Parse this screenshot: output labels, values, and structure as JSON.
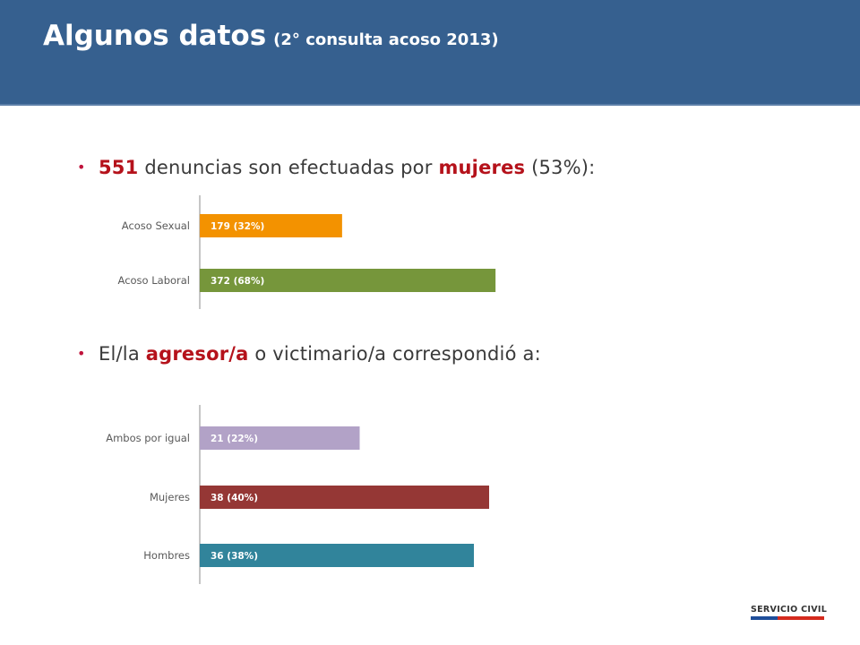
{
  "header": {
    "title": "Algunos datos",
    "subtitle": "(2° consulta acoso 2013)"
  },
  "bullet1": {
    "bullet": "•",
    "number": "551",
    "text_a": " denuncias son efectuadas por ",
    "highlight": "mujeres",
    "text_b": " (53%):"
  },
  "bullet2": {
    "bullet": "•",
    "text_a": "El/la ",
    "highlight": "agresor/a",
    "text_b": " o victimario/a correspondió a:"
  },
  "chart_data": [
    {
      "type": "bar",
      "orientation": "horizontal",
      "categories": [
        "Acoso Sexual",
        "Acoso Laboral"
      ],
      "values": [
        179,
        372
      ],
      "data_labels": [
        "179 (32%)",
        "372 (68%)"
      ],
      "colors": [
        "#F39200",
        "#76963B"
      ],
      "xlim": [
        0,
        400
      ]
    },
    {
      "type": "bar",
      "orientation": "horizontal",
      "categories": [
        "Ambos por igual",
        "Mujeres",
        "Hombres"
      ],
      "values": [
        21,
        38,
        36
      ],
      "data_labels": [
        "21 (22%)",
        "38 (40%)",
        "36 (38%)"
      ],
      "colors": [
        "#B2A2C7",
        "#953735",
        "#31849B"
      ],
      "xlim": [
        0,
        40
      ]
    }
  ],
  "logo": {
    "text": "SERVICIO CIVIL",
    "colors": [
      "#1F4E9A",
      "#D52B1E"
    ]
  }
}
